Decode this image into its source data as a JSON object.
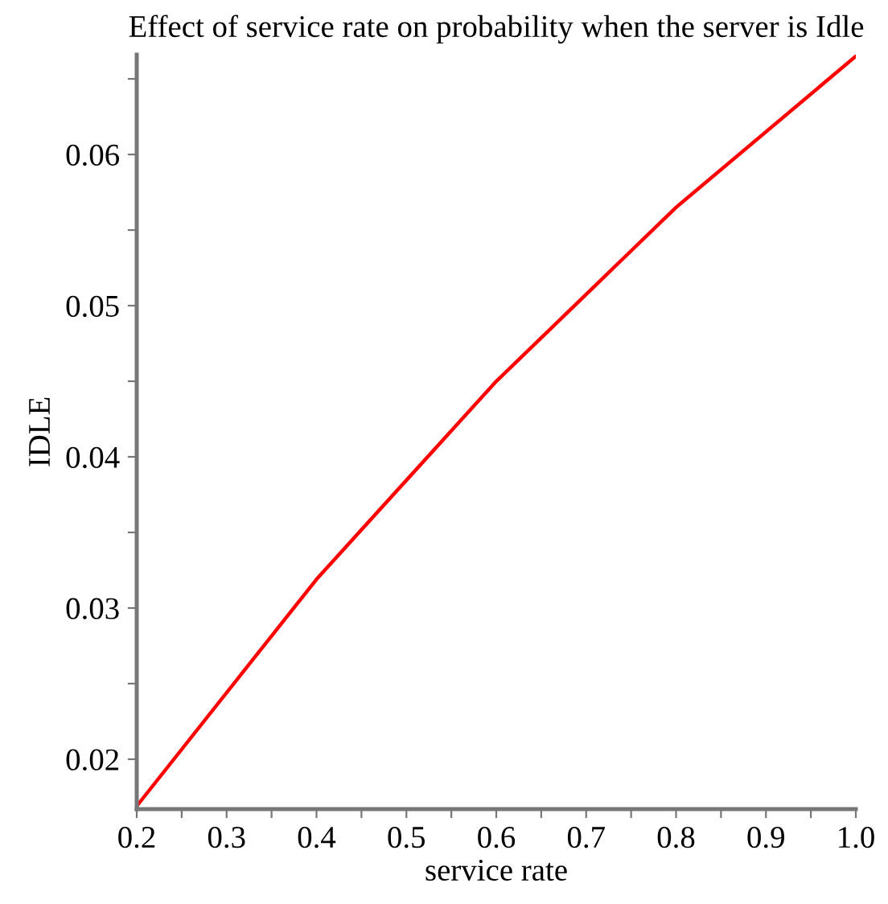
{
  "chart_data": {
    "type": "line",
    "title": "Effect of service rate on probability when the server is Idle",
    "xlabel": "service rate",
    "ylabel": "IDLE",
    "x": [
      0.2,
      0.4,
      0.6,
      0.8,
      1.0
    ],
    "series": [
      {
        "color": "#ff0000",
        "values": [
          0.0169,
          0.0319,
          0.045,
          0.0565,
          0.0665
        ]
      }
    ],
    "xlim": [
      0.2,
      1.0
    ],
    "ylim": [
      0.0167,
      0.0666
    ],
    "xticks": [
      0.2,
      {
        "value": 0.25,
        "label": null
      },
      0.3,
      {
        "value": 0.35,
        "label": null
      },
      0.4,
      {
        "value": 0.45,
        "label": null
      },
      0.5,
      {
        "value": 0.55,
        "label": null
      },
      0.6,
      {
        "value": 0.65,
        "label": null
      },
      0.7,
      {
        "value": 0.75,
        "label": null
      },
      0.8,
      {
        "value": 0.85,
        "label": null
      },
      0.9,
      {
        "value": 0.95,
        "label": null
      },
      {
        "value": 1.0,
        "label": "1.0"
      }
    ],
    "yticks": [
      0.02,
      {
        "value": 0.025,
        "label": null
      },
      0.03,
      {
        "value": 0.035,
        "label": null
      },
      0.04,
      {
        "value": 0.045,
        "label": null
      },
      0.05,
      {
        "value": 0.055,
        "label": null
      },
      0.06,
      {
        "value": 0.065,
        "label": null
      }
    ],
    "grid": false,
    "legend": false,
    "marker": "none",
    "line_style": "solid"
  }
}
